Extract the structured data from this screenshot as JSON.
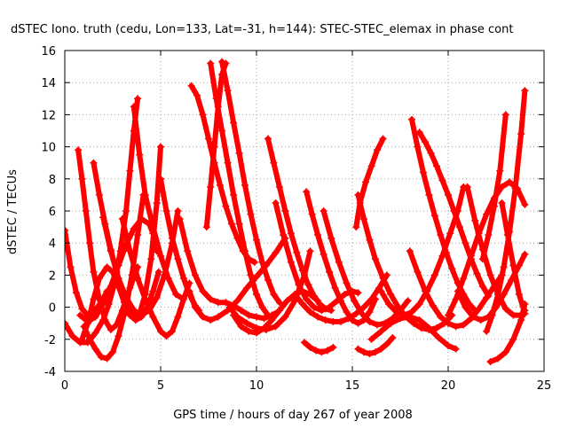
{
  "chart_data": {
    "type": "scatter",
    "title": "dSTEC Iono. truth (cedu, Lon=133, Lat=-31, h=144): STEC-STEC_elemax in phase cont",
    "xlabel": "GPS time / hours of day 267 of year 2008",
    "ylabel": "dSTEC  / TECUs",
    "xlim": [
      0,
      25
    ],
    "ylim": [
      -4,
      16
    ],
    "xticks": [
      0,
      5,
      10,
      15,
      20,
      25
    ],
    "yticks": [
      -4,
      -2,
      0,
      2,
      4,
      6,
      8,
      10,
      12,
      14,
      16
    ],
    "xtick_labels": [
      "0",
      "5",
      "10",
      "15",
      "20",
      "25"
    ],
    "ytick_labels": [
      "-4",
      "-2",
      "0",
      "2",
      "4",
      "6",
      "8",
      "10",
      "12",
      "14",
      "16"
    ],
    "grid": true,
    "marker": "+",
    "color": "#ff0000",
    "series": [
      {
        "x": [
          0.0,
          0.3,
          0.6,
          0.9,
          1.2,
          1.5,
          1.9,
          2.2
        ],
        "y": [
          4.8,
          2.5,
          0.9,
          -0.1,
          -0.5,
          -0.3,
          0.3,
          1.0
        ]
      },
      {
        "x": [
          0.0,
          0.4,
          0.8,
          1.2,
          1.6,
          2.0,
          2.3,
          2.6,
          2.9,
          3.2,
          3.4,
          3.6,
          3.8
        ],
        "y": [
          -1.0,
          -1.8,
          -2.2,
          -2.2,
          -1.6,
          -0.8,
          0.2,
          1.5,
          3.5,
          6.0,
          8.5,
          11.0,
          13.0
        ]
      },
      {
        "x": [
          0.7,
          0.9,
          1.1,
          1.3,
          1.5,
          1.8,
          2.1,
          2.4,
          2.7,
          3.0,
          3.4,
          3.8
        ],
        "y": [
          9.8,
          8.0,
          6.0,
          4.0,
          2.2,
          0.5,
          -0.8,
          -1.4,
          -1.1,
          -0.2,
          1.2,
          2.5
        ]
      },
      {
        "x": [
          0.8,
          1.2,
          1.6,
          2.0,
          2.4,
          2.8,
          3.2,
          3.6,
          4.0,
          4.4,
          4.6,
          4.8
        ],
        "y": [
          -0.5,
          -0.9,
          -0.6,
          0.2,
          1.3,
          2.6,
          3.9,
          4.9,
          5.5,
          5.2,
          4.6,
          3.5
        ]
      },
      {
        "x": [
          0.9,
          1.2,
          1.5,
          1.8,
          2.2,
          2.5,
          2.8,
          3.1,
          3.4,
          3.7,
          4.0,
          4.3,
          4.6,
          4.9
        ],
        "y": [
          -2.0,
          -1.0,
          0.5,
          1.8,
          2.5,
          2.2,
          1.3,
          0.3,
          -0.5,
          -0.8,
          -0.6,
          0.0,
          1.0,
          2.2
        ]
      },
      {
        "x": [
          1.0,
          1.3,
          1.6,
          1.9,
          2.2,
          2.5,
          2.8,
          3.2,
          3.5,
          3.8,
          4.1
        ],
        "y": [
          -1.2,
          -2.0,
          -2.6,
          -3.1,
          -3.2,
          -2.8,
          -1.8,
          0.0,
          2.0,
          4.5,
          7.0
        ]
      },
      {
        "x": [
          1.5,
          1.8,
          2.1,
          2.4,
          2.7,
          3.0,
          3.3,
          3.6,
          3.9,
          4.2,
          4.5,
          4.8,
          5.0
        ],
        "y": [
          9.0,
          7.0,
          5.2,
          3.6,
          2.2,
          1.0,
          0.0,
          -0.6,
          -0.4,
          0.8,
          3.0,
          6.5,
          10.0
        ]
      },
      {
        "x": [
          2.0,
          2.4,
          2.8,
          3.2,
          3.6,
          4.0,
          4.4,
          4.8,
          5.2,
          5.6,
          5.9
        ],
        "y": [
          5.6,
          3.5,
          1.8,
          0.6,
          -0.2,
          -0.5,
          -0.2,
          0.6,
          2.0,
          4.0,
          6.0
        ]
      },
      {
        "x": [
          3.0,
          3.4,
          3.8,
          4.2,
          4.6,
          5.0,
          5.3,
          5.6,
          5.9,
          6.2
        ],
        "y": [
          5.5,
          3.5,
          1.8,
          0.5,
          -0.6,
          -1.5,
          -1.8,
          -1.5,
          -0.6,
          0.5
        ]
      },
      {
        "x": [
          3.6,
          3.9,
          4.2,
          4.6,
          5.0,
          5.4,
          5.8,
          6.2,
          6.5
        ],
        "y": [
          12.5,
          9.5,
          7.0,
          5.0,
          3.2,
          1.8,
          0.8,
          0.5,
          1.5
        ]
      },
      {
        "x": [
          5.0,
          5.3,
          5.6,
          5.9,
          6.2,
          6.5,
          6.8,
          7.0
        ],
        "y": [
          8.0,
          6.0,
          4.3,
          3.0,
          1.8,
          0.8,
          0.1,
          -0.2
        ]
      },
      {
        "x": [
          6.0,
          6.4,
          6.8,
          7.2,
          7.6,
          8.0,
          8.4,
          8.8,
          9.2,
          9.6,
          10.0,
          10.4,
          10.8,
          11.1
        ],
        "y": [
          5.5,
          3.5,
          2.0,
          1.0,
          0.5,
          0.3,
          0.3,
          0.1,
          -0.2,
          -0.5,
          -0.6,
          -0.7,
          -0.5,
          -0.3
        ]
      },
      {
        "x": [
          6.5,
          6.8,
          7.2,
          7.6,
          8.0,
          8.5,
          9.0,
          9.5,
          10.0,
          10.5,
          11.0,
          11.5
        ],
        "y": [
          1.0,
          0.0,
          -0.6,
          -0.8,
          -0.6,
          -0.2,
          0.4,
          1.2,
          1.9,
          2.6,
          3.4,
          4.3
        ]
      },
      {
        "x": [
          6.6,
          6.9,
          7.2,
          7.5,
          7.8,
          8.1,
          8.4,
          8.7,
          9.0,
          9.3,
          9.6,
          9.9
        ],
        "y": [
          13.8,
          13.2,
          12.0,
          10.5,
          9.0,
          7.6,
          6.3,
          5.2,
          4.3,
          3.5,
          3.0,
          2.8
        ]
      },
      {
        "x": [
          7.4,
          7.6,
          7.8,
          8.0,
          8.2,
          8.4
        ],
        "y": [
          5.0,
          7.5,
          10.0,
          12.5,
          14.5,
          15.2
        ]
      },
      {
        "x": [
          7.6,
          7.9,
          8.2,
          8.5,
          8.8,
          9.1,
          9.4,
          9.7,
          10.0,
          10.3,
          10.6
        ],
        "y": [
          15.2,
          13.0,
          11.0,
          9.0,
          7.0,
          5.2,
          3.5,
          2.0,
          0.8,
          0.0,
          -0.5
        ]
      },
      {
        "x": [
          8.2,
          8.5,
          8.8,
          9.1,
          9.4,
          9.7,
          10.0,
          10.3,
          10.6,
          10.9,
          11.2
        ],
        "y": [
          15.3,
          13.5,
          11.5,
          9.6,
          7.6,
          5.8,
          4.2,
          2.8,
          1.7,
          0.8,
          0.3
        ]
      },
      {
        "x": [
          8.6,
          9.0,
          9.5,
          10.0,
          10.5,
          11.0,
          11.5,
          12.0,
          12.5,
          12.8
        ],
        "y": [
          0.0,
          -0.6,
          -1.0,
          -1.3,
          -1.4,
          -1.2,
          -0.6,
          0.4,
          2.0,
          3.5
        ]
      },
      {
        "x": [
          8.8,
          9.2,
          9.6,
          10.0,
          10.4,
          10.8,
          11.2,
          11.6,
          12.0,
          12.4,
          12.8,
          13.2
        ],
        "y": [
          -0.5,
          -1.2,
          -1.5,
          -1.6,
          -1.3,
          -0.8,
          -0.2,
          0.4,
          0.8,
          1.0,
          0.8,
          0.4
        ]
      },
      {
        "x": [
          10.6,
          10.9,
          11.2,
          11.5,
          11.8,
          12.1,
          12.4,
          12.7,
          13.0,
          13.3,
          13.6,
          13.9
        ],
        "y": [
          10.5,
          9.0,
          7.5,
          6.0,
          4.6,
          3.4,
          2.3,
          1.4,
          0.7,
          0.2,
          -0.1,
          -0.2
        ]
      },
      {
        "x": [
          11.0,
          11.4,
          11.8,
          12.2,
          12.6,
          13.0,
          13.4,
          13.8,
          14.2,
          14.6,
          15.0,
          15.3
        ],
        "y": [
          6.5,
          4.5,
          2.8,
          1.4,
          0.5,
          0.0,
          -0.2,
          0.0,
          0.4,
          0.8,
          1.0,
          0.9
        ]
      },
      {
        "x": [
          12.0,
          12.4,
          12.8,
          13.2,
          13.6,
          14.0,
          14.4,
          14.8,
          15.2,
          15.6,
          16.0,
          16.4,
          16.8
        ],
        "y": [
          0.8,
          0.2,
          -0.3,
          -0.6,
          -0.8,
          -0.9,
          -0.9,
          -0.7,
          -0.4,
          0.0,
          0.5,
          1.2,
          2.0
        ]
      },
      {
        "x": [
          12.5,
          12.8,
          13.1,
          13.4,
          13.7,
          14.0
        ],
        "y": [
          -2.2,
          -2.5,
          -2.7,
          -2.8,
          -2.7,
          -2.5
        ]
      },
      {
        "x": [
          12.6,
          12.9,
          13.2,
          13.5,
          13.8,
          14.1,
          14.4,
          14.7,
          15.0,
          15.3,
          15.6,
          15.9,
          16.2
        ],
        "y": [
          7.2,
          5.8,
          4.5,
          3.3,
          2.2,
          1.2,
          0.4,
          -0.3,
          -0.8,
          -1.0,
          -0.8,
          -0.3,
          0.5
        ]
      },
      {
        "x": [
          13.5,
          13.9,
          14.3,
          14.7,
          15.1,
          15.5,
          15.9,
          16.3,
          16.7,
          17.1,
          17.5,
          17.9
        ],
        "y": [
          6.0,
          4.3,
          2.8,
          1.5,
          0.4,
          -0.4,
          -0.9,
          -1.1,
          -1.0,
          -0.7,
          -0.2,
          0.4
        ]
      },
      {
        "x": [
          15.3,
          15.6,
          15.9,
          16.2,
          16.5,
          16.8,
          17.1
        ],
        "y": [
          -2.6,
          -2.8,
          -2.9,
          -2.8,
          -2.6,
          -2.3,
          -1.9
        ]
      },
      {
        "x": [
          15.2,
          15.4,
          15.7,
          16.0,
          16.3,
          16.6
        ],
        "y": [
          5.0,
          6.5,
          7.8,
          8.8,
          9.8,
          10.5
        ]
      },
      {
        "x": [
          15.3,
          15.6,
          15.9,
          16.2,
          16.6,
          17.0,
          17.4,
          17.8,
          18.2,
          18.6,
          19.0,
          19.4,
          19.8,
          20.2
        ],
        "y": [
          7.0,
          5.5,
          4.2,
          3.0,
          1.8,
          0.8,
          0.0,
          -0.6,
          -1.0,
          -1.3,
          -1.4,
          -1.3,
          -1.0,
          -0.5
        ]
      },
      {
        "x": [
          16.0,
          16.5,
          17.0,
          17.5,
          18.0,
          18.5,
          19.0,
          19.5,
          20.0,
          20.4
        ],
        "y": [
          -2.0,
          -1.5,
          -1.0,
          -0.7,
          -0.6,
          -0.8,
          -1.3,
          -1.9,
          -2.4,
          -2.6
        ]
      },
      {
        "x": [
          16.5,
          16.9,
          17.3,
          17.7,
          18.1,
          18.5,
          18.9,
          19.3,
          19.7,
          20.1,
          20.5,
          20.8
        ],
        "y": [
          1.0,
          0.2,
          -0.3,
          -0.5,
          -0.3,
          0.2,
          1.0,
          2.0,
          3.2,
          4.6,
          6.0,
          7.5
        ]
      },
      {
        "x": [
          18.1,
          18.4,
          18.7,
          19.0,
          19.3,
          19.6,
          19.9,
          20.2,
          20.5,
          20.8,
          21.1,
          21.4
        ],
        "y": [
          11.7,
          10.0,
          8.4,
          7.0,
          5.7,
          4.5,
          3.4,
          2.4,
          1.5,
          0.8,
          0.2,
          -0.2
        ]
      },
      {
        "x": [
          18.5,
          18.8,
          19.1,
          19.4,
          19.7,
          20.0,
          20.3,
          20.6,
          20.9,
          21.2,
          21.5,
          21.8,
          22.1
        ],
        "y": [
          10.9,
          10.3,
          9.6,
          8.8,
          7.9,
          7.0,
          6.0,
          5.0,
          4.0,
          3.0,
          2.1,
          1.3,
          0.7
        ]
      },
      {
        "x": [
          18.0,
          18.4,
          18.8,
          19.2,
          19.6,
          20.0,
          20.4,
          20.8,
          21.2,
          21.6,
          22.0,
          22.4,
          22.8
        ],
        "y": [
          3.5,
          2.2,
          1.0,
          0.1,
          -0.6,
          -1.0,
          -1.2,
          -1.1,
          -0.7,
          -0.1,
          0.6,
          1.3,
          2.0
        ]
      },
      {
        "x": [
          20.0,
          20.4,
          20.8,
          21.2,
          21.6,
          22.0,
          22.4,
          22.8,
          23.2,
          23.6,
          24.0
        ],
        "y": [
          -0.5,
          0.5,
          1.8,
          3.2,
          4.6,
          5.8,
          6.8,
          7.5,
          7.8,
          7.4,
          6.4
        ]
      },
      {
        "x": [
          20.5,
          20.9,
          21.3,
          21.7,
          22.1,
          22.5,
          22.9,
          23.3,
          23.7,
          24.0
        ],
        "y": [
          1.0,
          0.0,
          -0.6,
          -0.8,
          -0.6,
          0.0,
          0.8,
          1.7,
          2.6,
          3.3
        ]
      },
      {
        "x": [
          21.0,
          21.4,
          21.8,
          22.2,
          22.6,
          23.0,
          23.4,
          23.8,
          24.0
        ],
        "y": [
          7.5,
          5.4,
          3.6,
          2.0,
          0.8,
          -0.1,
          -0.5,
          -0.5,
          -0.2
        ]
      },
      {
        "x": [
          21.8,
          22.1,
          22.4,
          22.7,
          23.0
        ],
        "y": [
          3.0,
          4.5,
          6.3,
          8.5,
          12.0
        ]
      },
      {
        "x": [
          22.0,
          22.3,
          22.6,
          22.9,
          23.2,
          23.5,
          23.8,
          24.0
        ],
        "y": [
          -1.5,
          -0.5,
          0.8,
          2.5,
          4.7,
          7.4,
          10.8,
          13.5
        ]
      },
      {
        "x": [
          22.2,
          22.6,
          23.0,
          23.4,
          23.8,
          24.0
        ],
        "y": [
          -3.4,
          -3.2,
          -2.8,
          -2.0,
          -0.8,
          0.2
        ]
      },
      {
        "x": [
          22.8,
          23.1,
          23.4,
          23.7,
          24.0
        ],
        "y": [
          6.5,
          4.5,
          2.6,
          0.8,
          -0.4
        ]
      }
    ]
  }
}
